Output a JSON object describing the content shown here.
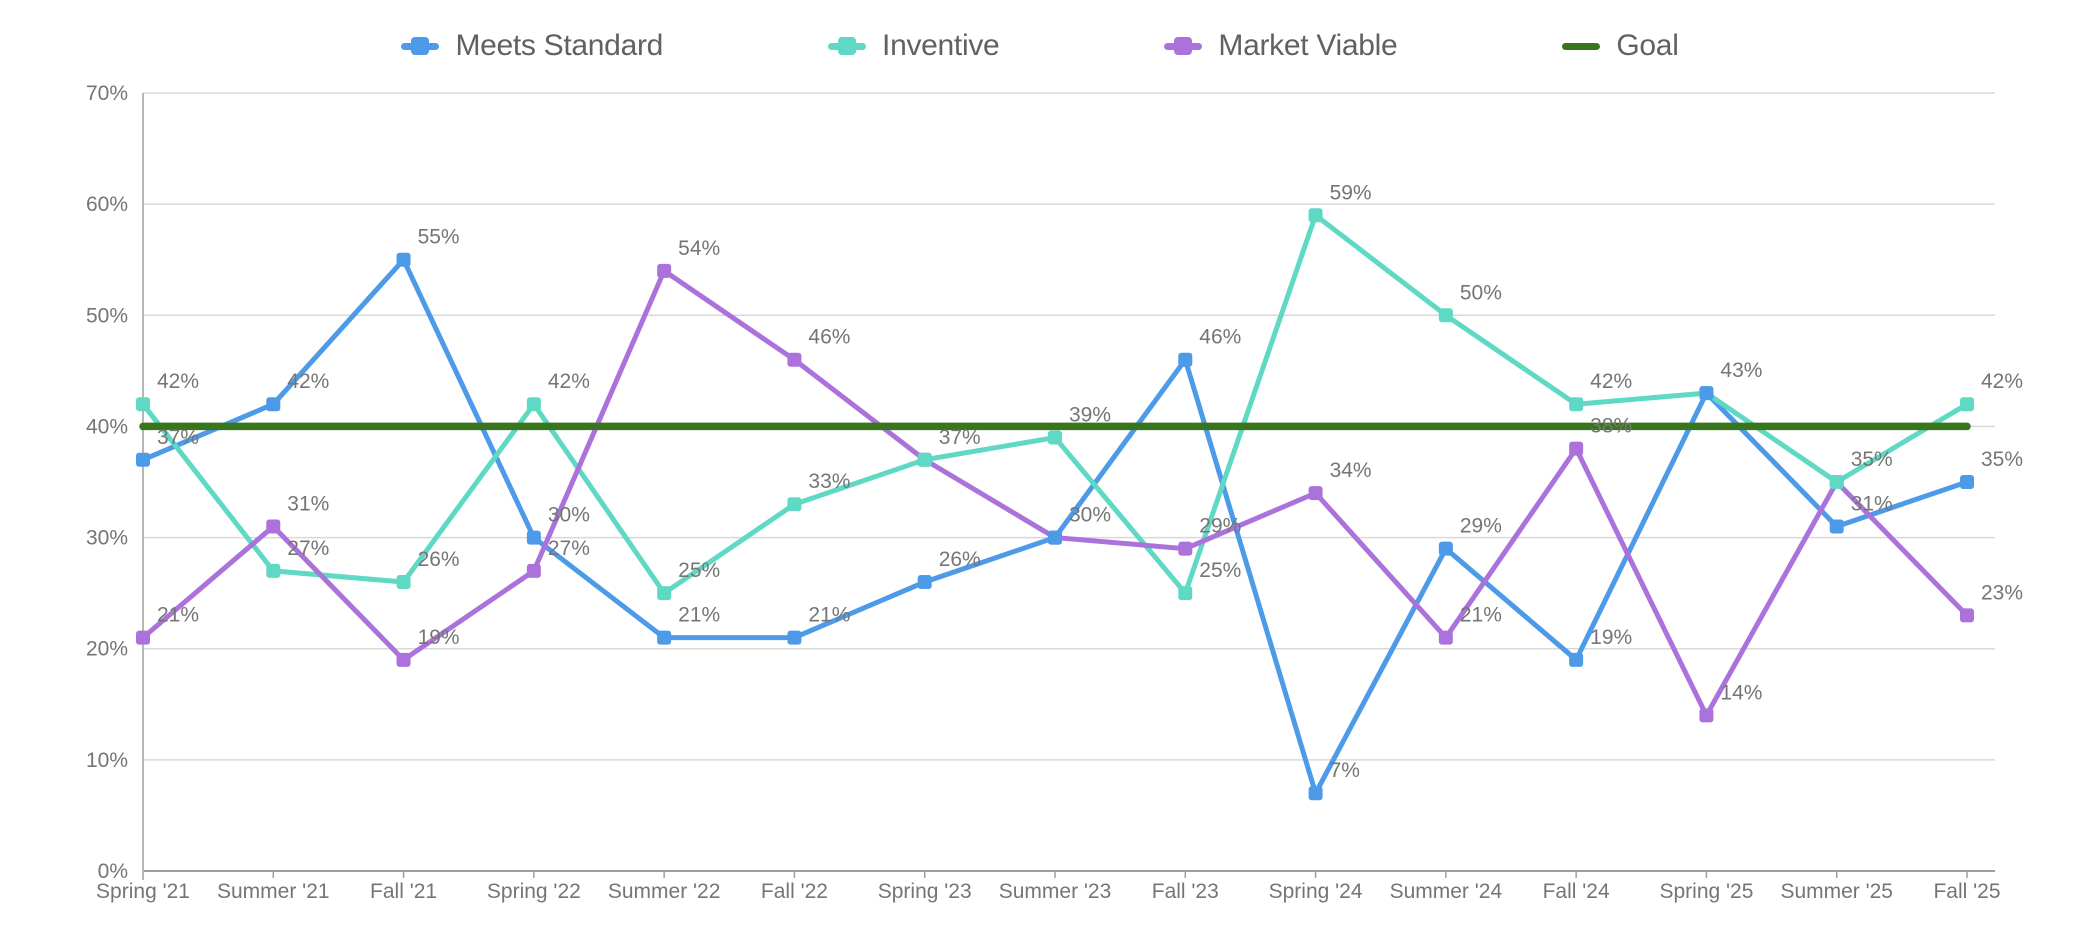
{
  "chart_data": {
    "type": "line",
    "title": "",
    "categories": [
      "Spring '21",
      "Summer '21",
      "Fall '21",
      "Spring '22",
      "Summer '22",
      "Fall '22",
      "Spring '23",
      "Summer '23",
      "Fall '23",
      "Spring '24",
      "Summer '24",
      "Fall '24",
      "Spring '25",
      "Summer '25",
      "Fall '25"
    ],
    "series": [
      {
        "name": "Meets Standard",
        "color": "#4D9AE8",
        "marker": "square",
        "point_labels": true,
        "values": [
          37,
          42,
          55,
          30,
          21,
          21,
          26,
          30,
          46,
          7,
          29,
          19,
          43,
          31,
          35
        ]
      },
      {
        "name": "Inventive",
        "color": "#5FD9C4",
        "marker": "square",
        "point_labels": true,
        "values": [
          42,
          27,
          26,
          42,
          25,
          33,
          37,
          39,
          25,
          59,
          50,
          42,
          43,
          35,
          42
        ]
      },
      {
        "name": "Market Viable",
        "color": "#AC72DB",
        "marker": "square",
        "point_labels": true,
        "values": [
          21,
          31,
          19,
          27,
          54,
          46,
          37,
          30,
          29,
          34,
          21,
          38,
          14,
          35,
          23
        ]
      },
      {
        "name": "Goal",
        "color": "#38761D",
        "marker": "none",
        "point_labels": false,
        "values": [
          40,
          40,
          40,
          40,
          40,
          40,
          40,
          40,
          40,
          40,
          40,
          40,
          40,
          40,
          40
        ]
      }
    ],
    "ylim": [
      0,
      70
    ],
    "ytick_step": 10,
    "ytick_labels": [
      "0%",
      "10%",
      "20%",
      "30%",
      "40%",
      "50%",
      "60%",
      "70%"
    ],
    "value_suffix": "%",
    "grid": "horizontal",
    "legend_position": "top",
    "skip_duplicate_point_labels": true,
    "colors": {
      "point_label_text": "#757575",
      "axis_text": "#757575",
      "gridline": "#D9D9D9",
      "x_axis_line": "#9E9E9E",
      "y_axis_line": "#B7B7B7",
      "background": "#FFFFFF"
    }
  }
}
